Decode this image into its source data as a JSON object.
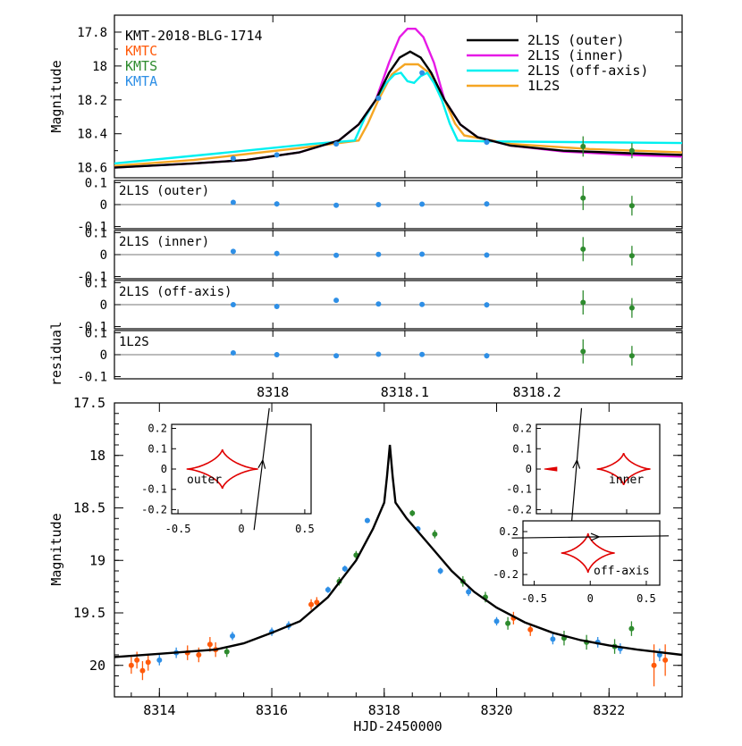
{
  "colors": {
    "KMTC": "#ff5a0a",
    "KMTS": "#2e8b2e",
    "KMTA": "#2e8fe6",
    "outer": "#000000",
    "inner": "#e619e6",
    "offaxis": "#00f0f0",
    "onel2s": "#f5a623",
    "caustic": "#e00000",
    "frame": "#000000",
    "zero": "#777777"
  },
  "chart_data": [
    {
      "type": "line",
      "panel": "top",
      "event": "KMT-2018-BLG-1714",
      "ylabel": "Magnitude",
      "xlim": [
        8317.88,
        8318.31
      ],
      "ylim": [
        18.66,
        17.7
      ],
      "yticks": [
        17.8,
        18,
        18.2,
        18.4,
        18.6
      ],
      "observatories": [
        "KMTC",
        "KMTS",
        "KMTA"
      ],
      "legend": [
        "2L1S (outer)",
        "2L1S (inner)",
        "2L1S (off-axis)",
        "1L2S"
      ],
      "models": {
        "outer": [
          [
            8317.88,
            18.6
          ],
          [
            8317.94,
            18.575
          ],
          [
            8317.98,
            18.555
          ],
          [
            8318.02,
            18.51
          ],
          [
            8318.05,
            18.44
          ],
          [
            8318.065,
            18.345
          ],
          [
            8318.078,
            18.2
          ],
          [
            8318.088,
            18.04
          ],
          [
            8318.096,
            17.95
          ],
          [
            8318.104,
            17.915
          ],
          [
            8318.112,
            17.95
          ],
          [
            8318.12,
            18.04
          ],
          [
            8318.13,
            18.2
          ],
          [
            8318.142,
            18.345
          ],
          [
            8318.155,
            18.42
          ],
          [
            8318.18,
            18.47
          ],
          [
            8318.22,
            18.5
          ],
          [
            8318.27,
            18.515
          ],
          [
            8318.31,
            18.525
          ]
        ],
        "inner": [
          [
            8317.88,
            18.6
          ],
          [
            8317.94,
            18.575
          ],
          [
            8317.98,
            18.555
          ],
          [
            8318.02,
            18.51
          ],
          [
            8318.05,
            18.44
          ],
          [
            8318.065,
            18.345
          ],
          [
            8318.078,
            18.2
          ],
          [
            8318.088,
            17.98
          ],
          [
            8318.096,
            17.83
          ],
          [
            8318.102,
            17.78
          ],
          [
            8318.108,
            17.78
          ],
          [
            8318.114,
            17.83
          ],
          [
            8318.122,
            17.98
          ],
          [
            8318.13,
            18.2
          ],
          [
            8318.142,
            18.345
          ],
          [
            8318.155,
            18.42
          ],
          [
            8318.18,
            18.47
          ],
          [
            8318.22,
            18.505
          ],
          [
            8318.27,
            18.525
          ],
          [
            8318.31,
            18.535
          ]
        ],
        "offaxis": [
          [
            8317.88,
            18.575
          ],
          [
            8317.96,
            18.515
          ],
          [
            8318.03,
            18.46
          ],
          [
            8318.062,
            18.44
          ],
          [
            8318.07,
            18.3
          ],
          [
            8318.078,
            18.2
          ],
          [
            8318.086,
            18.1
          ],
          [
            8318.092,
            18.05
          ],
          [
            8318.097,
            18.04
          ],
          [
            8318.102,
            18.09
          ],
          [
            8318.107,
            18.1
          ],
          [
            8318.112,
            18.06
          ],
          [
            8318.117,
            18.04
          ],
          [
            8318.122,
            18.1
          ],
          [
            8318.128,
            18.2
          ],
          [
            8318.134,
            18.34
          ],
          [
            8318.14,
            18.44
          ],
          [
            8318.16,
            18.445
          ],
          [
            8318.31,
            18.455
          ]
        ],
        "onel2s": [
          [
            8317.88,
            18.59
          ],
          [
            8317.94,
            18.555
          ],
          [
            8318.02,
            18.485
          ],
          [
            8318.065,
            18.44
          ],
          [
            8318.072,
            18.34
          ],
          [
            8318.08,
            18.2
          ],
          [
            8318.09,
            18.05
          ],
          [
            8318.1,
            17.99
          ],
          [
            8318.11,
            17.99
          ],
          [
            8318.12,
            18.05
          ],
          [
            8318.13,
            18.2
          ],
          [
            8318.138,
            18.34
          ],
          [
            8318.145,
            18.41
          ],
          [
            8318.18,
            18.46
          ],
          [
            8318.24,
            18.49
          ],
          [
            8318.31,
            18.51
          ]
        ]
      },
      "points": [
        {
          "obs": "KMTA",
          "x": 8317.97,
          "y": 18.545,
          "err": 0.015
        },
        {
          "obs": "KMTA",
          "x": 8318.003,
          "y": 18.525,
          "err": 0.015
        },
        {
          "obs": "KMTA",
          "x": 8318.048,
          "y": 18.46,
          "err": 0.012
        },
        {
          "obs": "KMTA",
          "x": 8318.08,
          "y": 18.19,
          "err": 0.012
        },
        {
          "obs": "KMTA",
          "x": 8318.113,
          "y": 18.04,
          "err": 0.012
        },
        {
          "obs": "KMTA",
          "x": 8318.162,
          "y": 18.45,
          "err": 0.015
        },
        {
          "obs": "KMTS",
          "x": 8318.235,
          "y": 18.475,
          "err": 0.06
        },
        {
          "obs": "KMTS",
          "x": 8318.272,
          "y": 18.5,
          "err": 0.045
        }
      ]
    },
    {
      "type": "scatter",
      "panel": "residuals",
      "ylabel": "residual",
      "xlim": [
        8317.88,
        8318.31
      ],
      "ylim": [
        -0.11,
        0.11
      ],
      "yticks": [
        -0.1,
        0,
        0.1
      ],
      "xticks": [
        8318,
        8318.1,
        8318.2
      ],
      "xticklabels": [
        "8318",
        "8318.1",
        "8318.2"
      ],
      "x": [
        8317.97,
        8318.003,
        8318.048,
        8318.08,
        8318.113,
        8318.162,
        8318.235,
        8318.272
      ],
      "obs": [
        "KMTA",
        "KMTA",
        "KMTA",
        "KMTA",
        "KMTA",
        "KMTA",
        "KMTS",
        "KMTS"
      ],
      "err": [
        0.01,
        0.012,
        0.01,
        0.008,
        0.008,
        0.012,
        0.055,
        0.045
      ],
      "series": [
        {
          "name": "2L1S (outer)",
          "values": [
            0.01,
            0.003,
            -0.003,
            0,
            0.002,
            0.003,
            0.03,
            -0.005
          ]
        },
        {
          "name": "2L1S (inner)",
          "values": [
            0.015,
            0.005,
            -0.003,
            0.001,
            0.002,
            -0.002,
            0.025,
            -0.005
          ]
        },
        {
          "name": "2L1S (off-axis)",
          "values": [
            0,
            -0.008,
            0.02,
            0.003,
            0.001,
            -0.001,
            0.01,
            -0.015
          ]
        },
        {
          "name": "1L2S",
          "values": [
            0.008,
            0,
            -0.005,
            0.002,
            0.001,
            -0.005,
            0.015,
            -0.005
          ]
        }
      ]
    },
    {
      "type": "scatter",
      "panel": "main",
      "xlabel": "HJD-2450000",
      "ylabel": "Magnitude",
      "xlim": [
        8313.2,
        8823.3
      ],
      "ylim": [
        20.3,
        17.5
      ],
      "yticks": [
        17.5,
        18,
        18.5,
        19,
        19.5,
        20
      ],
      "yticklabels": [
        "17.5",
        "18",
        "18.5",
        "19",
        "19.5",
        "20"
      ],
      "xticks": [
        8314,
        8316,
        8318,
        8320,
        8322
      ],
      "model": [
        [
          8313.2,
          19.92
        ],
        [
          8314,
          19.89
        ],
        [
          8315,
          19.85
        ],
        [
          8315.5,
          19.79
        ],
        [
          8316,
          19.69
        ],
        [
          8316.5,
          19.58
        ],
        [
          8317,
          19.35
        ],
        [
          8317.5,
          19.0
        ],
        [
          8317.8,
          18.7
        ],
        [
          8318,
          18.45
        ],
        [
          8318.05,
          18.2
        ],
        [
          8318.1,
          17.9
        ],
        [
          8318.15,
          18.2
        ],
        [
          8318.2,
          18.45
        ],
        [
          8318.4,
          18.6
        ],
        [
          8318.8,
          18.85
        ],
        [
          8319.2,
          19.1
        ],
        [
          8319.6,
          19.3
        ],
        [
          8320,
          19.45
        ],
        [
          8320.5,
          19.59
        ],
        [
          8321,
          19.69
        ],
        [
          8321.5,
          19.76
        ],
        [
          8322,
          19.81
        ],
        [
          8322.5,
          19.85
        ],
        [
          8823.3,
          19.9
        ]
      ],
      "points": [
        {
          "obs": "KMTC",
          "x": 8313.5,
          "y": 20.0,
          "err": 0.08
        },
        {
          "obs": "KMTC",
          "x": 8313.6,
          "y": 19.95,
          "err": 0.08
        },
        {
          "obs": "KMTC",
          "x": 8313.7,
          "y": 20.05,
          "err": 0.09
        },
        {
          "obs": "KMTC",
          "x": 8313.8,
          "y": 19.97,
          "err": 0.08
        },
        {
          "obs": "KMTC",
          "x": 8314.5,
          "y": 19.88,
          "err": 0.07
        },
        {
          "obs": "KMTC",
          "x": 8314.7,
          "y": 19.9,
          "err": 0.07
        },
        {
          "obs": "KMTC",
          "x": 8314.9,
          "y": 19.8,
          "err": 0.07
        },
        {
          "obs": "KMTC",
          "x": 8315.0,
          "y": 19.85,
          "err": 0.07
        },
        {
          "obs": "KMTC",
          "x": 8316.7,
          "y": 19.42,
          "err": 0.05
        },
        {
          "obs": "KMTC",
          "x": 8316.8,
          "y": 19.4,
          "err": 0.05
        },
        {
          "obs": "KMTC",
          "x": 8320.3,
          "y": 19.55,
          "err": 0.06
        },
        {
          "obs": "KMTC",
          "x": 8320.6,
          "y": 19.66,
          "err": 0.06
        },
        {
          "obs": "KMTC",
          "x": 8322.8,
          "y": 20.0,
          "err": 0.2
        },
        {
          "obs": "KMTC",
          "x": 8323.0,
          "y": 19.95,
          "err": 0.15
        },
        {
          "obs": "KMTA",
          "x": 8314.0,
          "y": 19.95,
          "err": 0.05
        },
        {
          "obs": "KMTA",
          "x": 8314.3,
          "y": 19.88,
          "err": 0.05
        },
        {
          "obs": "KMTA",
          "x": 8315.3,
          "y": 19.72,
          "err": 0.04
        },
        {
          "obs": "KMTA",
          "x": 8316.0,
          "y": 19.68,
          "err": 0.04
        },
        {
          "obs": "KMTA",
          "x": 8316.3,
          "y": 19.62,
          "err": 0.04
        },
        {
          "obs": "KMTA",
          "x": 8317.0,
          "y": 19.28,
          "err": 0.03
        },
        {
          "obs": "KMTA",
          "x": 8317.3,
          "y": 19.08,
          "err": 0.03
        },
        {
          "obs": "KMTA",
          "x": 8317.7,
          "y": 18.62,
          "err": 0.02
        },
        {
          "obs": "KMTA",
          "x": 8318.6,
          "y": 18.7,
          "err": 0.02
        },
        {
          "obs": "KMTA",
          "x": 8319.0,
          "y": 19.1,
          "err": 0.03
        },
        {
          "obs": "KMTA",
          "x": 8319.5,
          "y": 19.3,
          "err": 0.04
        },
        {
          "obs": "KMTA",
          "x": 8320.0,
          "y": 19.58,
          "err": 0.04
        },
        {
          "obs": "KMTA",
          "x": 8321.0,
          "y": 19.75,
          "err": 0.05
        },
        {
          "obs": "KMTA",
          "x": 8321.8,
          "y": 19.78,
          "err": 0.05
        },
        {
          "obs": "KMTA",
          "x": 8322.2,
          "y": 19.84,
          "err": 0.05
        },
        {
          "obs": "KMTA",
          "x": 8322.9,
          "y": 19.9,
          "err": 0.06
        },
        {
          "obs": "KMTS",
          "x": 8315.2,
          "y": 19.87,
          "err": 0.05
        },
        {
          "obs": "KMTS",
          "x": 8317.2,
          "y": 19.2,
          "err": 0.04
        },
        {
          "obs": "KMTS",
          "x": 8317.5,
          "y": 18.95,
          "err": 0.04
        },
        {
          "obs": "KMTS",
          "x": 8318.5,
          "y": 18.55,
          "err": 0.03
        },
        {
          "obs": "KMTS",
          "x": 8318.9,
          "y": 18.75,
          "err": 0.04
        },
        {
          "obs": "KMTS",
          "x": 8319.4,
          "y": 19.2,
          "err": 0.05
        },
        {
          "obs": "KMTS",
          "x": 8319.8,
          "y": 19.35,
          "err": 0.05
        },
        {
          "obs": "KMTS",
          "x": 8320.2,
          "y": 19.6,
          "err": 0.06
        },
        {
          "obs": "KMTS",
          "x": 8321.2,
          "y": 19.74,
          "err": 0.07
        },
        {
          "obs": "KMTS",
          "x": 8321.6,
          "y": 19.78,
          "err": 0.07
        },
        {
          "obs": "KMTS",
          "x": 8322.1,
          "y": 19.82,
          "err": 0.07
        },
        {
          "obs": "KMTS",
          "x": 8322.4,
          "y": 19.65,
          "err": 0.07
        }
      ],
      "insets": [
        {
          "label": "outer",
          "xticks": [
            -0.5,
            0,
            0.5
          ],
          "xticklabels": [
            "-0.5",
            "0",
            "0.5"
          ],
          "yticks": [
            0.2,
            0.1,
            0,
            -0.1,
            -0.2
          ],
          "yticklabels": [
            "0.2",
            "0.1",
            "0",
            "-0.1",
            "-0.2"
          ],
          "xlim": [
            -0.55,
            0.55
          ],
          "ylim": [
            -0.22,
            0.22
          ],
          "caustic_center": [
            -0.15,
            0
          ],
          "trajectory": [
            [
              0.1,
              -0.3
            ],
            [
              0.22,
              0.3
            ]
          ]
        },
        {
          "label": "inner",
          "xticks": [
            0,
            0.5
          ],
          "xticklabels": [
            "0",
            "0.5"
          ],
          "yticks": [
            0.2,
            0.1,
            0,
            -0.1,
            -0.2
          ],
          "yticklabels": [
            "0.2",
            "0.1",
            "0",
            "-0.1",
            "-0.2"
          ],
          "xlim": [
            -0.1,
            0.72
          ],
          "ylim": [
            -0.22,
            0.22
          ],
          "caustic_center": [
            0.48,
            0
          ],
          "trajectory": [
            [
              0.13,
              -0.3
            ],
            [
              0.2,
              0.3
            ]
          ]
        },
        {
          "label": "off-axis",
          "xticks": [
            -0.5,
            0,
            0.5
          ],
          "xticklabels": [
            "-0.5",
            "0",
            "0.5"
          ],
          "yticks": [
            0.2,
            0,
            -0.2
          ],
          "yticklabels": [
            "0.2",
            "0",
            "-0.2"
          ],
          "xlim": [
            -0.6,
            0.62
          ],
          "ylim": [
            -0.3,
            0.3
          ],
          "caustic_center": [
            -0.02,
            0
          ],
          "trajectory": [
            [
              -0.7,
              0.14
            ],
            [
              0.7,
              0.16
            ]
          ]
        }
      ]
    }
  ],
  "text": {
    "event": "KMT-2018-BLG-1714",
    "obs1": "KMTC",
    "obs2": "KMTS",
    "obs3": "KMTA",
    "leg1": "2L1S (outer)",
    "leg2": "2L1S (inner)",
    "leg3": "2L1S (off-axis)",
    "leg4": "1L2S",
    "res1": "2L1S (outer)",
    "res2": "2L1S (inner)",
    "res3": "2L1S (off-axis)",
    "res4": "1L2S",
    "ylabel_top": "Magnitude",
    "ylabel_res": "residual",
    "ylabel_main": "Magnitude",
    "xlabel_main": "HJD-2450000",
    "inset1": "outer",
    "inset2": "inner",
    "inset3": "off-axis"
  }
}
